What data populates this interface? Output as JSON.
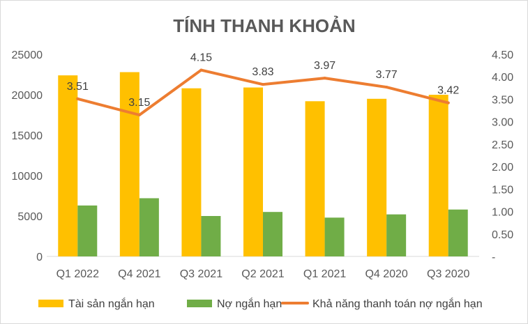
{
  "chart_data": {
    "type": "bar",
    "title": "TÍNH THANH KHOẢN",
    "categories": [
      "Q1 2022",
      "Q4 2021",
      "Q3 2021",
      "Q2 2021",
      "Q1 2021",
      "Q4 2020",
      "Q3 2020"
    ],
    "series": [
      {
        "name": "Tài sản ngắn hạn",
        "type": "bar",
        "axis": "left",
        "color": "#FFC000",
        "values": [
          22400,
          22800,
          20800,
          20900,
          19200,
          19500,
          20000
        ]
      },
      {
        "name": "Nợ ngắn hạn",
        "type": "bar",
        "axis": "left",
        "color": "#70AD47",
        "values": [
          6300,
          7200,
          5000,
          5500,
          4800,
          5200,
          5800
        ]
      },
      {
        "name": "Khả năng thanh toán nợ ngắn hạn",
        "type": "line",
        "axis": "right",
        "color": "#ED7D31",
        "values": [
          3.51,
          3.15,
          4.15,
          3.83,
          3.97,
          3.77,
          3.42
        ],
        "labels": [
          "3.51",
          "3.15",
          "4.15",
          "3.83",
          "3.97",
          "3.77",
          "3.42"
        ]
      }
    ],
    "y_left": {
      "ylim": [
        0,
        25000
      ],
      "ticks": [
        0,
        5000,
        10000,
        15000,
        20000,
        25000
      ],
      "tick_labels": [
        "0",
        "5000",
        "10000",
        "15000",
        "20000",
        "25000"
      ]
    },
    "y_right": {
      "ylim": [
        0,
        4.5
      ],
      "ticks": [
        0,
        0.5,
        1,
        1.5,
        2,
        2.5,
        3,
        3.5,
        4,
        4.5
      ],
      "tick_labels": [
        "-",
        "0.50",
        "1.00",
        "1.50",
        "2.00",
        "2.50",
        "3.00",
        "3.50",
        "4.00",
        "4.50"
      ]
    },
    "grid": false,
    "legend_position": "bottom"
  }
}
